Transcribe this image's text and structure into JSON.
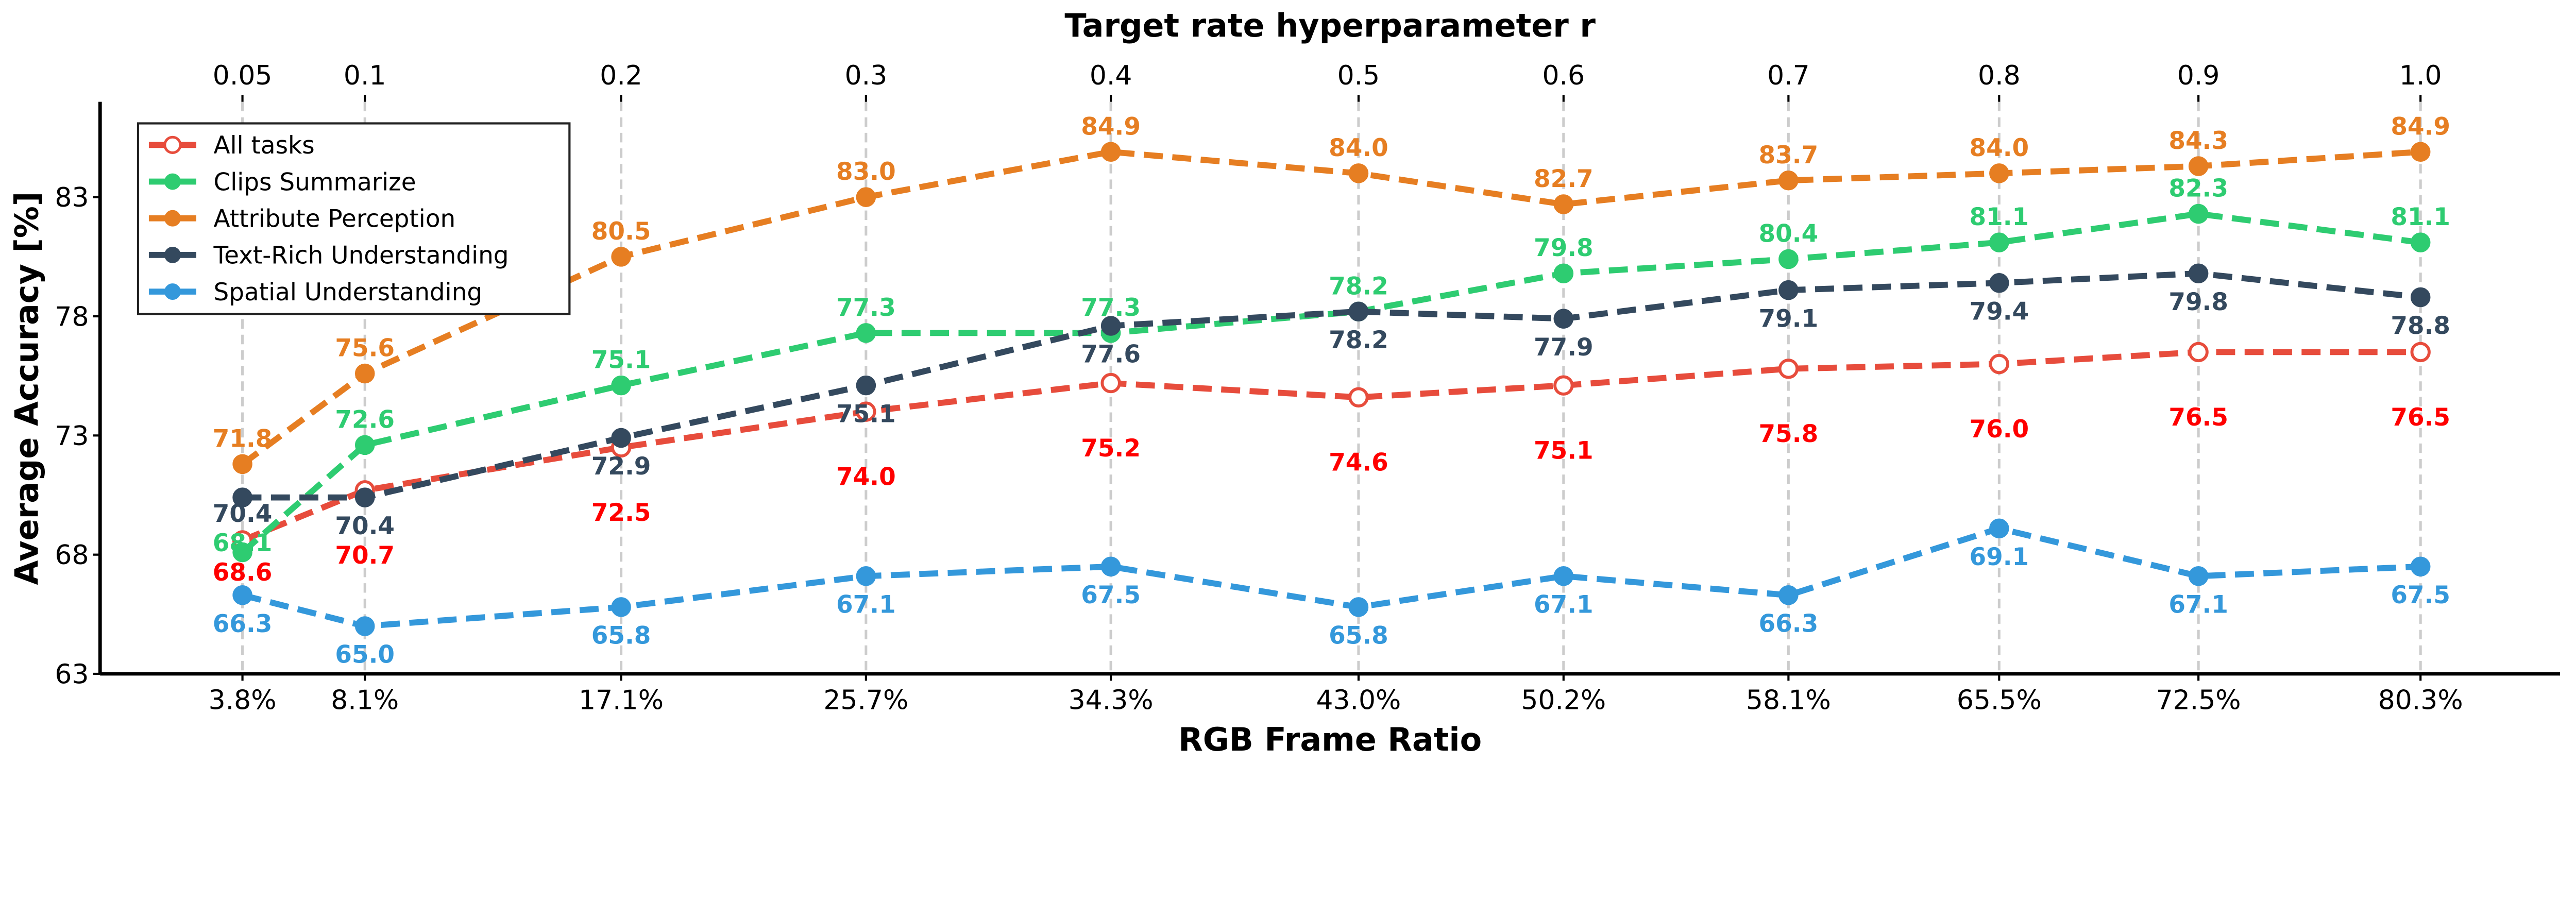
{
  "chart_data": {
    "type": "line",
    "xlabel": "RGB Frame Ratio",
    "ylabel": "Average Accuracy [%]",
    "top_xlabel": "Target rate hyperparameter r",
    "x": [
      3.8,
      8.1,
      17.1,
      25.7,
      34.3,
      43.0,
      50.2,
      58.1,
      65.5,
      72.5,
      80.3
    ],
    "x_tick_labels": [
      "3.8%",
      "8.1%",
      "17.1%",
      "25.7%",
      "34.3%",
      "43.0%",
      "50.2%",
      "58.1%",
      "65.5%",
      "72.5%",
      "80.3%"
    ],
    "top_tick_labels": [
      "0.05",
      "0.1",
      "0.2",
      "0.3",
      "0.4",
      "0.5",
      "0.6",
      "0.7",
      "0.8",
      "0.9",
      "1.0"
    ],
    "y_ticks": [
      63,
      68,
      73,
      78,
      83
    ],
    "xlim": [
      -1.2,
      85.2
    ],
    "ylim": [
      63,
      87
    ],
    "grid": "vertical dashed at each x",
    "legend_position": "upper-left",
    "series": [
      {
        "name": "All tasks",
        "color": "#e74c3c",
        "label_color": "#ff0000",
        "marker": "hollow-circle",
        "label_pos": "below",
        "values": [
          68.6,
          70.7,
          72.5,
          74.0,
          75.2,
          74.6,
          75.1,
          75.8,
          76.0,
          76.5,
          76.5
        ]
      },
      {
        "name": "Clips Summarize",
        "color": "#2ecc71",
        "label_color": "#2ecc71",
        "marker": "circle",
        "label_pos": "above",
        "values": [
          68.1,
          72.6,
          75.1,
          77.3,
          77.3,
          78.2,
          79.8,
          80.4,
          81.1,
          82.3,
          81.1
        ]
      },
      {
        "name": "Attribute Perception",
        "color": "#e67e22",
        "label_color": "#e67e22",
        "marker": "circle",
        "label_pos": "above",
        "values": [
          71.8,
          75.6,
          80.5,
          83.0,
          84.9,
          84.0,
          82.7,
          83.7,
          84.0,
          84.3,
          84.9
        ]
      },
      {
        "name": "Text-Rich Understanding",
        "color": "#34495e",
        "label_color": "#34495e",
        "marker": "circle",
        "label_pos": "below",
        "values": [
          70.4,
          70.4,
          72.9,
          75.1,
          77.6,
          78.2,
          77.9,
          79.1,
          79.4,
          79.8,
          78.8
        ]
      },
      {
        "name": "Spatial Understanding",
        "color": "#3498db",
        "label_color": "#3498db",
        "marker": "circle",
        "label_pos": "below",
        "values": [
          66.3,
          65.0,
          65.8,
          67.1,
          67.5,
          65.8,
          67.1,
          66.3,
          69.1,
          67.1,
          67.5
        ]
      }
    ]
  }
}
